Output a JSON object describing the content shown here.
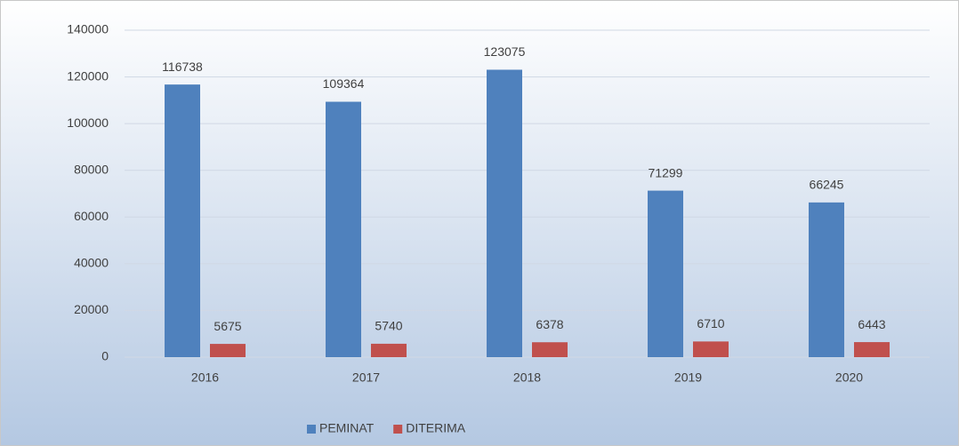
{
  "chart_data": {
    "type": "bar",
    "categories": [
      "2016",
      "2017",
      "2018",
      "2019",
      "2020"
    ],
    "series": [
      {
        "name": "PEMINAT",
        "color": "#4f81bd",
        "values": [
          116738,
          109364,
          123075,
          71299,
          66245
        ]
      },
      {
        "name": "DITERIMA",
        "color": "#c0504d",
        "values": [
          5675,
          5740,
          6378,
          6710,
          6443
        ]
      }
    ],
    "ylim": [
      0,
      140000
    ],
    "yticks": [
      0,
      20000,
      40000,
      60000,
      80000,
      100000,
      120000,
      140000
    ],
    "grid": true,
    "legend": "bottom"
  }
}
